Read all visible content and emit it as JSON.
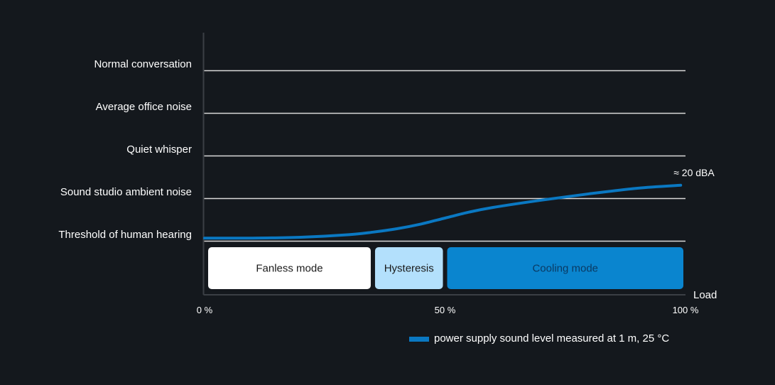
{
  "chart_data": {
    "type": "line",
    "xlabel": "Load",
    "x_ticks": [
      "0 %",
      "50 %",
      "100 %"
    ],
    "xlim": [
      0,
      100
    ],
    "y_levels": [
      "Threshold of human hearing",
      "Sound studio ambient noise",
      "Quiet whisper",
      "Average office noise",
      "Normal conversation"
    ],
    "series": [
      {
        "name": "power supply sound level measured at 1 m, 25 °C",
        "color": "#0a78c2",
        "x": [
          0,
          10,
          20,
          30,
          35,
          40,
          45,
          50,
          55,
          60,
          70,
          80,
          90,
          99
        ],
        "y": [
          0.08,
          0.08,
          0.1,
          0.16,
          0.22,
          0.3,
          0.41,
          0.55,
          0.69,
          0.8,
          0.97,
          1.12,
          1.25,
          1.32
        ]
      }
    ],
    "annotation": {
      "text": "≈ 20 dBA",
      "x": 99,
      "y": 1.32
    },
    "modes": [
      {
        "label": "Fanless mode",
        "x_start": 0,
        "x_end": 35,
        "fill": "#ffffff",
        "text_color": "#1a1a1a"
      },
      {
        "label": "Hysteresis",
        "x_start": 35,
        "x_end": 50,
        "fill": "#b3e0fc",
        "text_color": "#1a1a1a"
      },
      {
        "label": "Cooling mode",
        "x_start": 50,
        "x_end": 100,
        "fill": "#0a85cf",
        "text_color": "#0a3a63"
      }
    ],
    "legend_position": "bottom-right",
    "colors": {
      "background": "#14181d",
      "axis": "#3b3f45",
      "gridline": "#d9d9d9",
      "line": "#0a78c2"
    }
  }
}
